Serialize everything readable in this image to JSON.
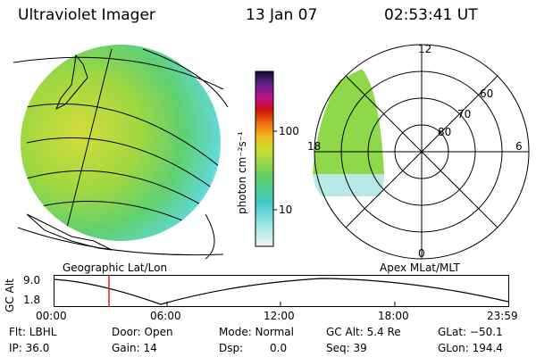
{
  "header": {
    "title": "Ultraviolet Imager",
    "date": "13 Jan 07",
    "time": "02:53:41 UT"
  },
  "left_panel": {
    "label": "Geographic Lat/Lon"
  },
  "right_panel": {
    "label": "Apex MLat/MLT",
    "mlt_labels": [
      "12",
      "18",
      "6",
      "0"
    ],
    "mlat_labels": [
      "60",
      "70",
      "80"
    ]
  },
  "colorbar": {
    "unit": "photon cm⁻²s⁻¹",
    "ticks": [
      "100",
      "10"
    ]
  },
  "altitude_plot": {
    "ylabel": "GC Alt",
    "yticks": [
      "9.0",
      "1.8"
    ],
    "xticks": [
      "00:00",
      "06:00",
      "12:00",
      "18:00",
      "23:59"
    ],
    "marker_time": "02:53:41"
  },
  "info": {
    "flt": "Flt: LBHL",
    "door": "Door: Open",
    "mode": "Mode: Normal",
    "gcalt": "GC Alt: 5.4 Re",
    "glat": "GLat: −50.1",
    "ip": "IP: 36.0",
    "gain": "Gain: 14",
    "dsp_label": "Dsp:",
    "dsp_value": "0.0",
    "seq": "Seq: 39",
    "glon": "GLon: 194.4"
  },
  "colors": {
    "auroral_green": "#7fd040",
    "auroral_yellow": "#d8e040",
    "marker": "#e02020"
  }
}
